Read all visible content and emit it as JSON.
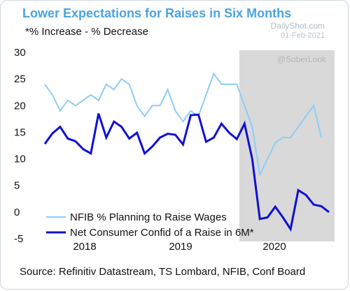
{
  "title": "Lower Expectations for Raises in Six Months",
  "subtitle": "*% Increase - % Decrease",
  "source": "Source: Refinitiv Datastream, TS Lombard,  NFIB, Conf Board",
  "brand": {
    "name": "DailyShot.com",
    "date": "01-Feb-2021",
    "handle": "@SoberLook"
  },
  "colors": {
    "title": "#4ba3e3",
    "nfib": "#8ecdf5",
    "confboard": "#1010d6",
    "shade": "#d9d9d9"
  },
  "chart_data": {
    "type": "line",
    "x_labels": [
      "2018",
      "2019",
      "2020"
    ],
    "ylim": [
      -5,
      30
    ],
    "y_ticks": [
      "30",
      "25",
      "20",
      "15",
      "10",
      "5",
      "0",
      "-5"
    ],
    "shaded_region": {
      "start": 37,
      "end": 51,
      "note": "recession shading"
    },
    "legend": [
      "NFIB % Planning to Raise Wages",
      "Net Consumer Confid of a Raise in 6M*"
    ],
    "series": [
      {
        "name": "NFIB % Planning to Raise Wages",
        "points": [
          [
            0,
            24
          ],
          [
            1,
            22
          ],
          [
            2,
            19
          ],
          [
            3,
            21
          ],
          [
            4,
            20
          ],
          [
            5,
            21
          ],
          [
            6,
            22
          ],
          [
            7,
            21
          ],
          [
            8,
            24
          ],
          [
            9,
            23
          ],
          [
            10,
            25
          ],
          [
            11,
            24
          ],
          [
            12,
            20
          ],
          [
            13,
            18
          ],
          [
            14,
            20
          ],
          [
            15,
            20
          ],
          [
            16,
            23
          ],
          [
            17,
            19
          ],
          [
            18,
            17
          ],
          [
            19,
            19
          ],
          [
            20,
            18
          ],
          [
            21,
            22
          ],
          [
            22,
            26
          ],
          [
            23,
            24
          ],
          [
            24,
            24
          ],
          [
            25,
            24
          ],
          [
            26,
            20
          ],
          [
            27,
            16
          ],
          [
            28,
            7
          ],
          [
            29,
            10
          ],
          [
            30,
            13
          ],
          [
            31,
            14
          ],
          [
            32,
            14
          ],
          [
            33,
            16
          ],
          [
            34,
            18
          ],
          [
            35,
            20
          ],
          [
            36,
            14
          ]
        ]
      },
      {
        "name": "Net Consumer Confid of a Raise in 6M*",
        "points": [
          [
            0,
            12.8
          ],
          [
            1,
            14.8
          ],
          [
            2,
            16
          ],
          [
            3,
            13.8
          ],
          [
            4,
            13.3
          ],
          [
            5,
            11.8
          ],
          [
            6,
            11
          ],
          [
            7,
            18.5
          ],
          [
            8,
            14
          ],
          [
            9,
            17
          ],
          [
            10,
            16
          ],
          [
            11,
            13.8
          ],
          [
            12,
            14.9
          ],
          [
            13,
            11
          ],
          [
            14,
            12.3
          ],
          [
            15,
            14
          ],
          [
            16,
            14.7
          ],
          [
            17,
            14.5
          ],
          [
            18,
            12.7
          ],
          [
            19,
            18.2
          ],
          [
            20,
            18.3
          ],
          [
            21,
            13.2
          ],
          [
            22,
            14
          ],
          [
            23,
            16.6
          ],
          [
            24,
            14.9
          ],
          [
            25,
            13.7
          ],
          [
            26,
            16.6
          ],
          [
            27,
            10
          ],
          [
            28,
            -1.3
          ],
          [
            29,
            -1
          ],
          [
            30,
            1
          ],
          [
            31,
            -1
          ],
          [
            32,
            -3.2
          ],
          [
            33,
            4.1
          ],
          [
            34,
            3.2
          ],
          [
            35,
            1.4
          ],
          [
            36,
            1.1
          ],
          [
            37,
            0
          ]
        ]
      }
    ]
  }
}
